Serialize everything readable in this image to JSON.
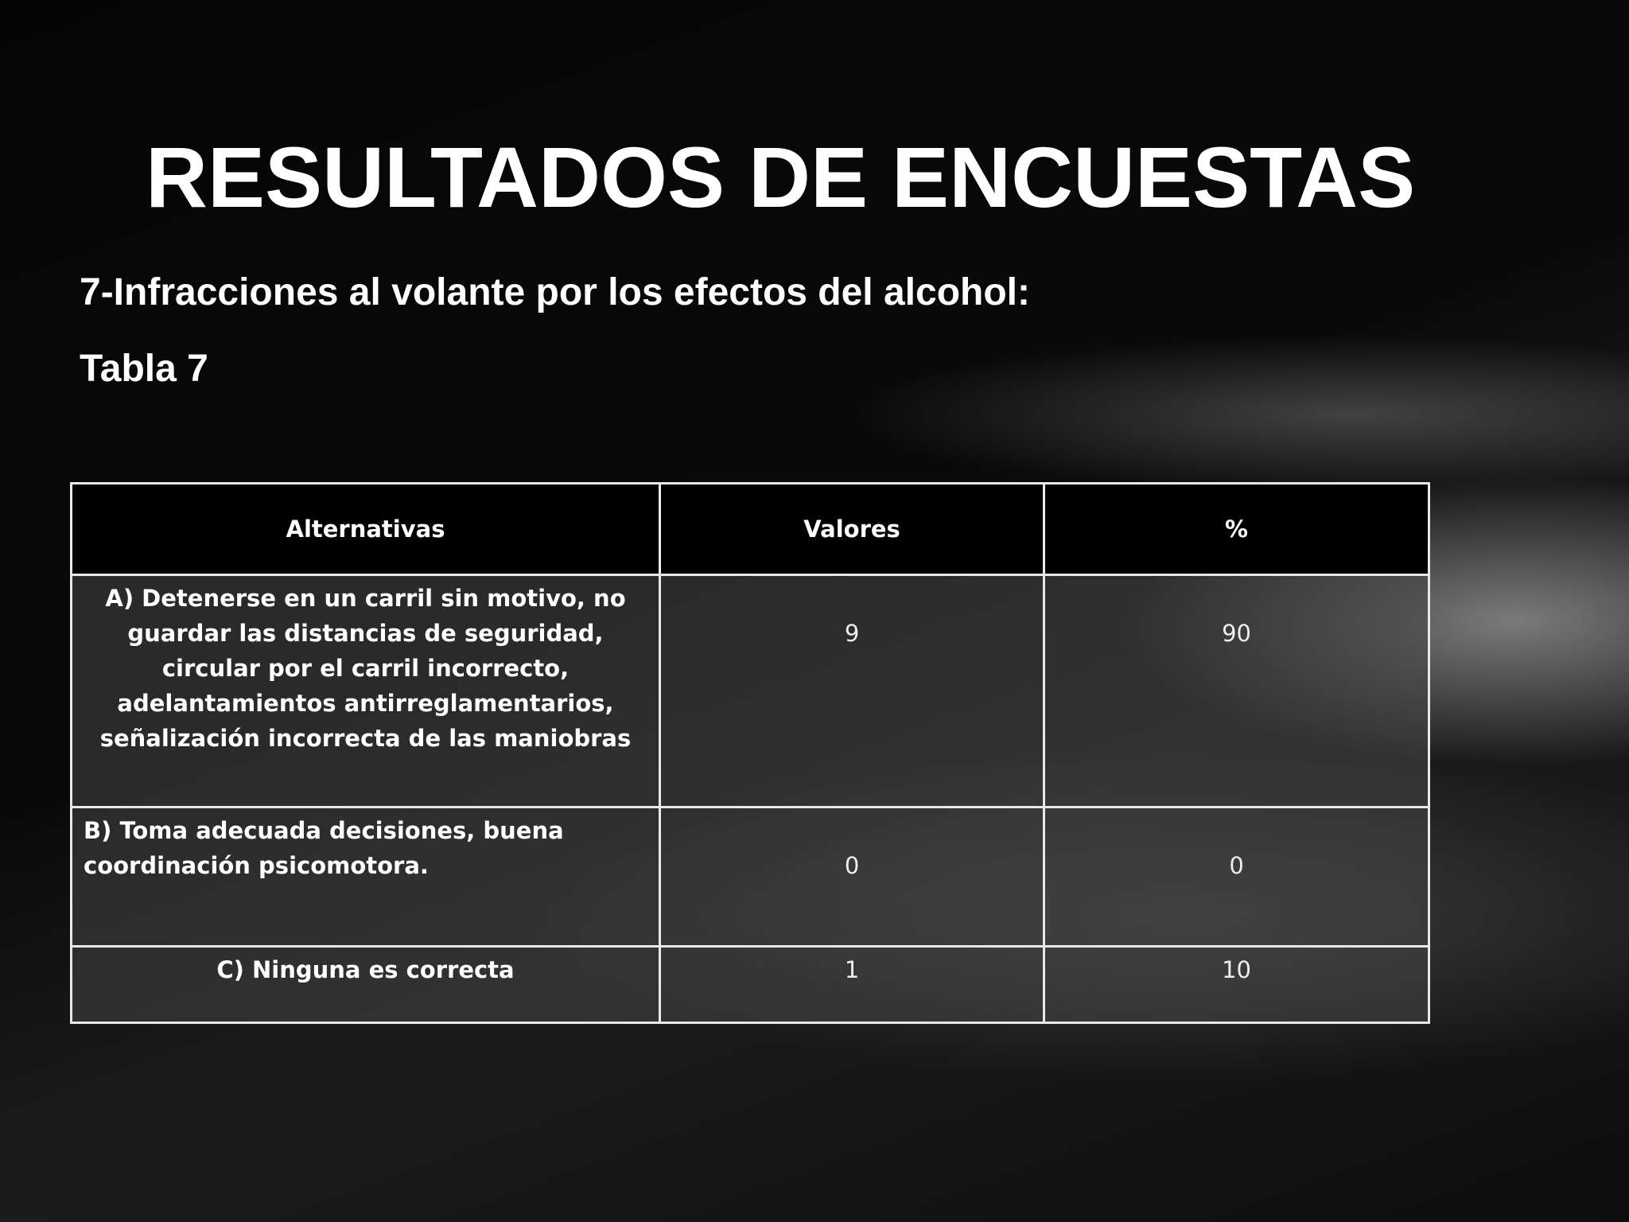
{
  "header": {
    "title": "RESULTADOS DE ENCUESTAS",
    "subtitle": "7-Infracciones al volante por los efectos del alcohol:",
    "caption": "Tabla 7"
  },
  "table": {
    "header": [
      "Alternativas",
      "Valores",
      "%"
    ],
    "rows": [
      [
        "A)  Detenerse en un carril sin motivo, no guardar las distancias de seguridad, circular por el carril incorrecto, adelantamientos antirreglamentarios, señalización incorrecta de las maniobras",
        9,
        90
      ],
      [
        "B)  Toma adecuada decisiones, buena coordinación psicomotora.",
        0,
        0
      ],
      [
        "C)  Ninguna es correcta",
        1,
        10
      ]
    ]
  }
}
